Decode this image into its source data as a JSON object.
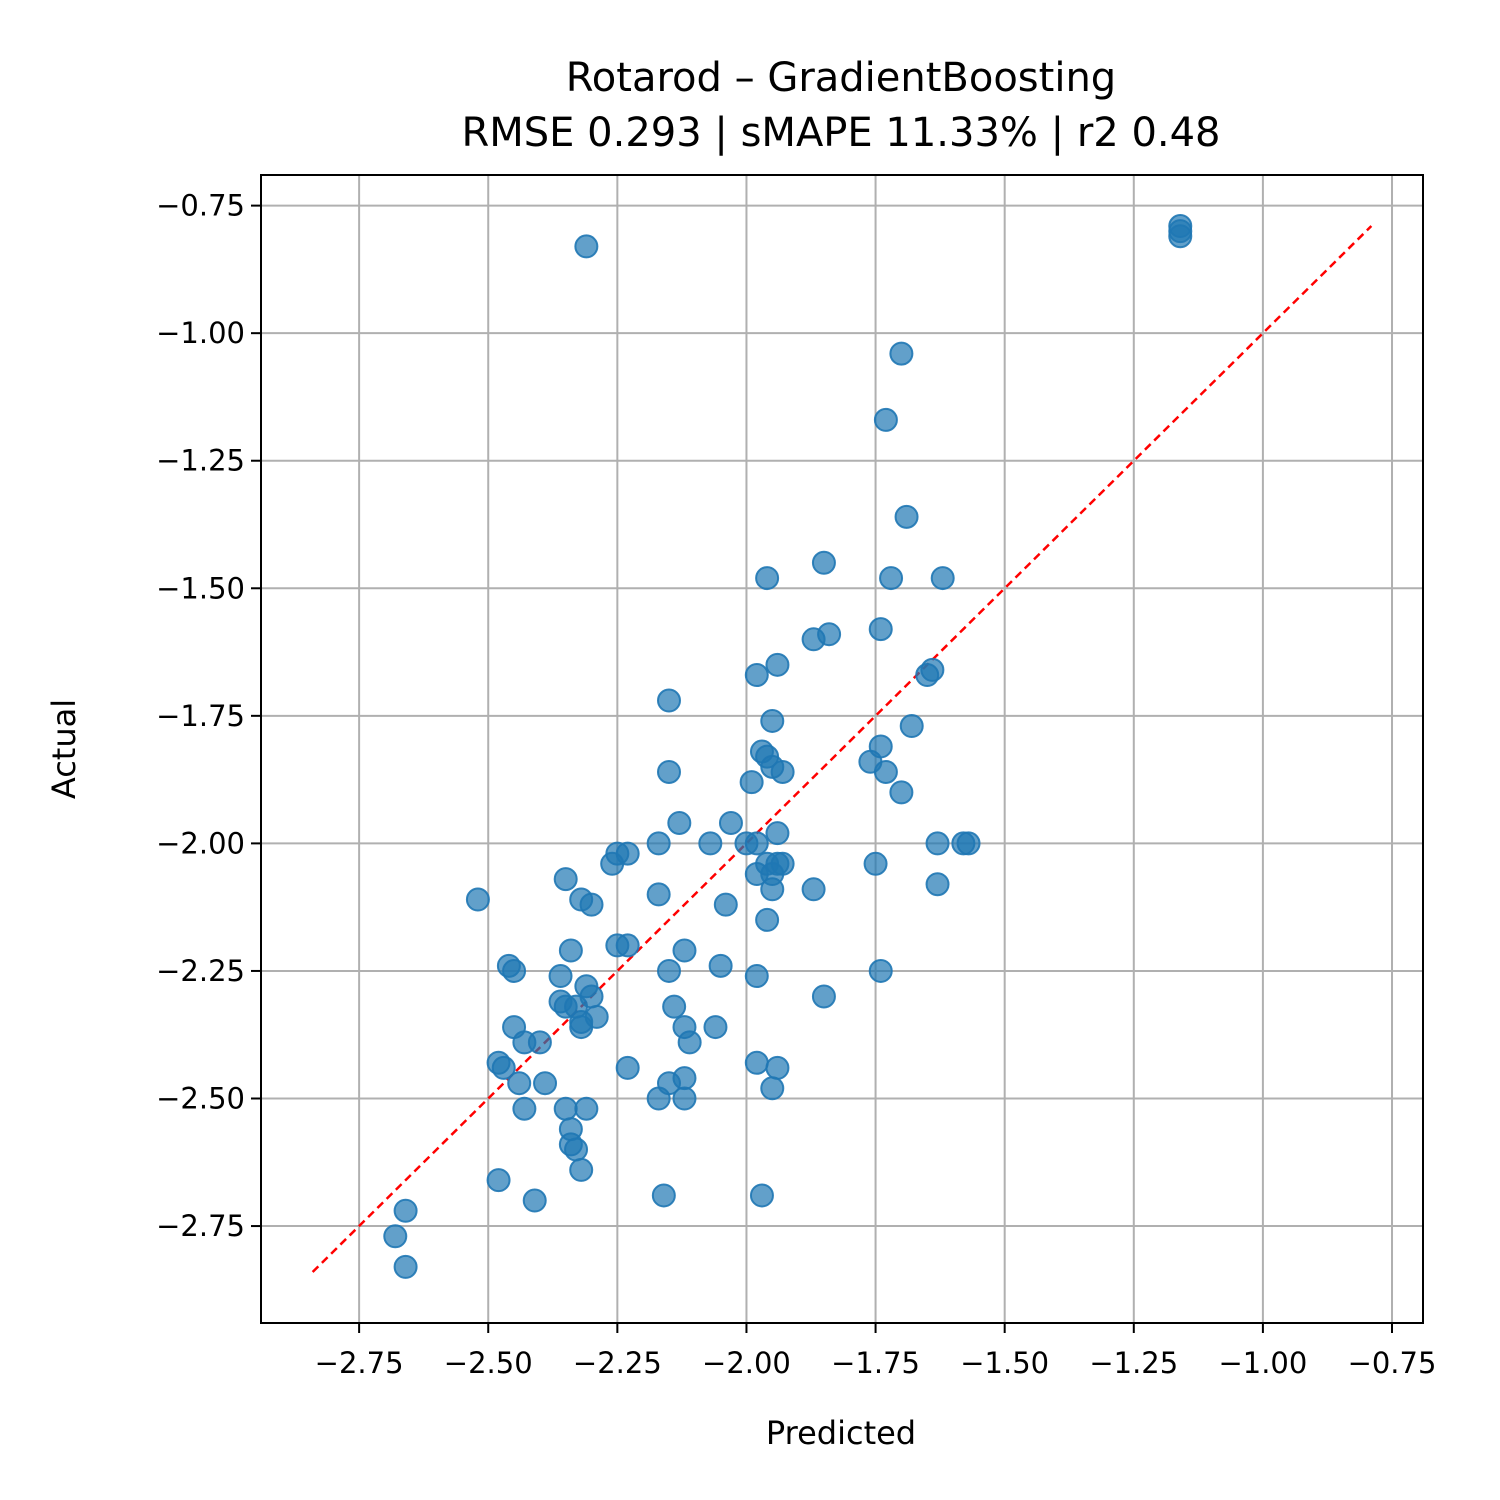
{
  "chart_data": {
    "type": "scatter",
    "title": "Rotarod – GradientBoosting",
    "subtitle": "RMSE 0.293 | sMAPE 11.33%  | r2 0.48",
    "xlabel": "Predicted",
    "ylabel": "Actual",
    "xlim": [
      -2.94,
      -0.69
    ],
    "ylim": [
      -2.94,
      -0.69
    ],
    "xticks": [
      -2.75,
      -2.5,
      -2.25,
      -2.0,
      -1.75,
      -1.5,
      -1.25,
      -1.0,
      -0.75
    ],
    "yticks": [
      -2.75,
      -2.5,
      -2.25,
      -2.0,
      -1.75,
      -1.5,
      -1.25,
      -1.0,
      -0.75
    ],
    "xtick_labels": [
      "−2.75",
      "−2.50",
      "−2.25",
      "−2.00",
      "−1.75",
      "−1.50",
      "−1.25",
      "−1.00",
      "−0.75"
    ],
    "ytick_labels": [
      "−2.75",
      "−2.50",
      "−2.25",
      "−2.00",
      "−1.75",
      "−1.50",
      "−1.25",
      "−1.00",
      "−0.75"
    ],
    "grid": true,
    "identity_line": {
      "from": -2.84,
      "to": -0.79,
      "color": "#ff0000",
      "style": "dashed"
    },
    "point_color": "#1f77b4",
    "series": [
      {
        "x": [
          -2.31,
          -1.16,
          -1.16,
          -1.16,
          -1.7,
          -1.73,
          -1.69,
          -1.85,
          -1.96,
          -1.72,
          -1.62,
          -1.87,
          -1.84,
          -1.74,
          -1.94,
          -1.98,
          -1.64,
          -1.65,
          -2.15,
          -1.95,
          -1.68,
          -1.97,
          -1.96,
          -1.74,
          -1.76,
          -1.95,
          -1.93,
          -1.73,
          -2.15,
          -1.99,
          -1.7,
          -2.13,
          -2.03,
          -2.07,
          -1.94,
          -2.0,
          -1.98,
          -2.17,
          -1.63,
          -1.58,
          -1.57,
          -2.25,
          -2.23,
          -1.96,
          -1.94,
          -1.93,
          -1.95,
          -2.26,
          -2.35,
          -2.52,
          -2.17,
          -1.75,
          -1.87,
          -1.63,
          -1.98,
          -1.95,
          -2.3,
          -2.32,
          -2.04,
          -1.96,
          -2.34,
          -2.25,
          -2.23,
          -2.12,
          -2.05,
          -2.46,
          -2.45,
          -2.15,
          -1.98,
          -1.74,
          -2.36,
          -1.85,
          -2.31,
          -2.36,
          -2.35,
          -2.3,
          -2.33,
          -2.32,
          -2.14,
          -2.29,
          -2.12,
          -2.45,
          -2.06,
          -2.32,
          -2.11,
          -2.43,
          -2.4,
          -2.48,
          -2.47,
          -2.23,
          -1.98,
          -1.94,
          -2.12,
          -2.44,
          -2.39,
          -2.15,
          -1.95,
          -2.17,
          -2.12,
          -2.43,
          -2.35,
          -2.31,
          -2.34,
          -2.34,
          -2.33,
          -2.32,
          -2.48,
          -2.41,
          -2.16,
          -1.97,
          -2.66,
          -2.68,
          -2.66
        ],
        "y": [
          -0.83,
          -0.79,
          -0.8,
          -0.81,
          -1.04,
          -1.17,
          -1.36,
          -1.45,
          -1.48,
          -1.48,
          -1.48,
          -1.6,
          -1.59,
          -1.58,
          -1.65,
          -1.67,
          -1.66,
          -1.67,
          -1.72,
          -1.76,
          -1.77,
          -1.82,
          -1.83,
          -1.81,
          -1.84,
          -1.85,
          -1.86,
          -1.86,
          -1.86,
          -1.88,
          -1.9,
          -1.96,
          -1.96,
          -2.0,
          -1.98,
          -2.0,
          -2.0,
          -2.0,
          -2.0,
          -2.0,
          -2.0,
          -2.02,
          -2.02,
          -2.04,
          -2.04,
          -2.04,
          -2.06,
          -2.04,
          -2.07,
          -2.11,
          -2.1,
          -2.04,
          -2.09,
          -2.08,
          -2.06,
          -2.09,
          -2.12,
          -2.11,
          -2.12,
          -2.15,
          -2.21,
          -2.2,
          -2.2,
          -2.21,
          -2.24,
          -2.24,
          -2.25,
          -2.25,
          -2.26,
          -2.25,
          -2.26,
          -2.3,
          -2.28,
          -2.31,
          -2.32,
          -2.3,
          -2.32,
          -2.36,
          -2.32,
          -2.34,
          -2.36,
          -2.36,
          -2.36,
          -2.35,
          -2.39,
          -2.39,
          -2.39,
          -2.43,
          -2.44,
          -2.44,
          -2.43,
          -2.44,
          -2.46,
          -2.47,
          -2.47,
          -2.47,
          -2.48,
          -2.5,
          -2.5,
          -2.52,
          -2.52,
          -2.52,
          -2.56,
          -2.59,
          -2.6,
          -2.64,
          -2.66,
          -2.7,
          -2.69,
          -2.69,
          -2.72,
          -2.77,
          -2.83
        ]
      }
    ]
  }
}
